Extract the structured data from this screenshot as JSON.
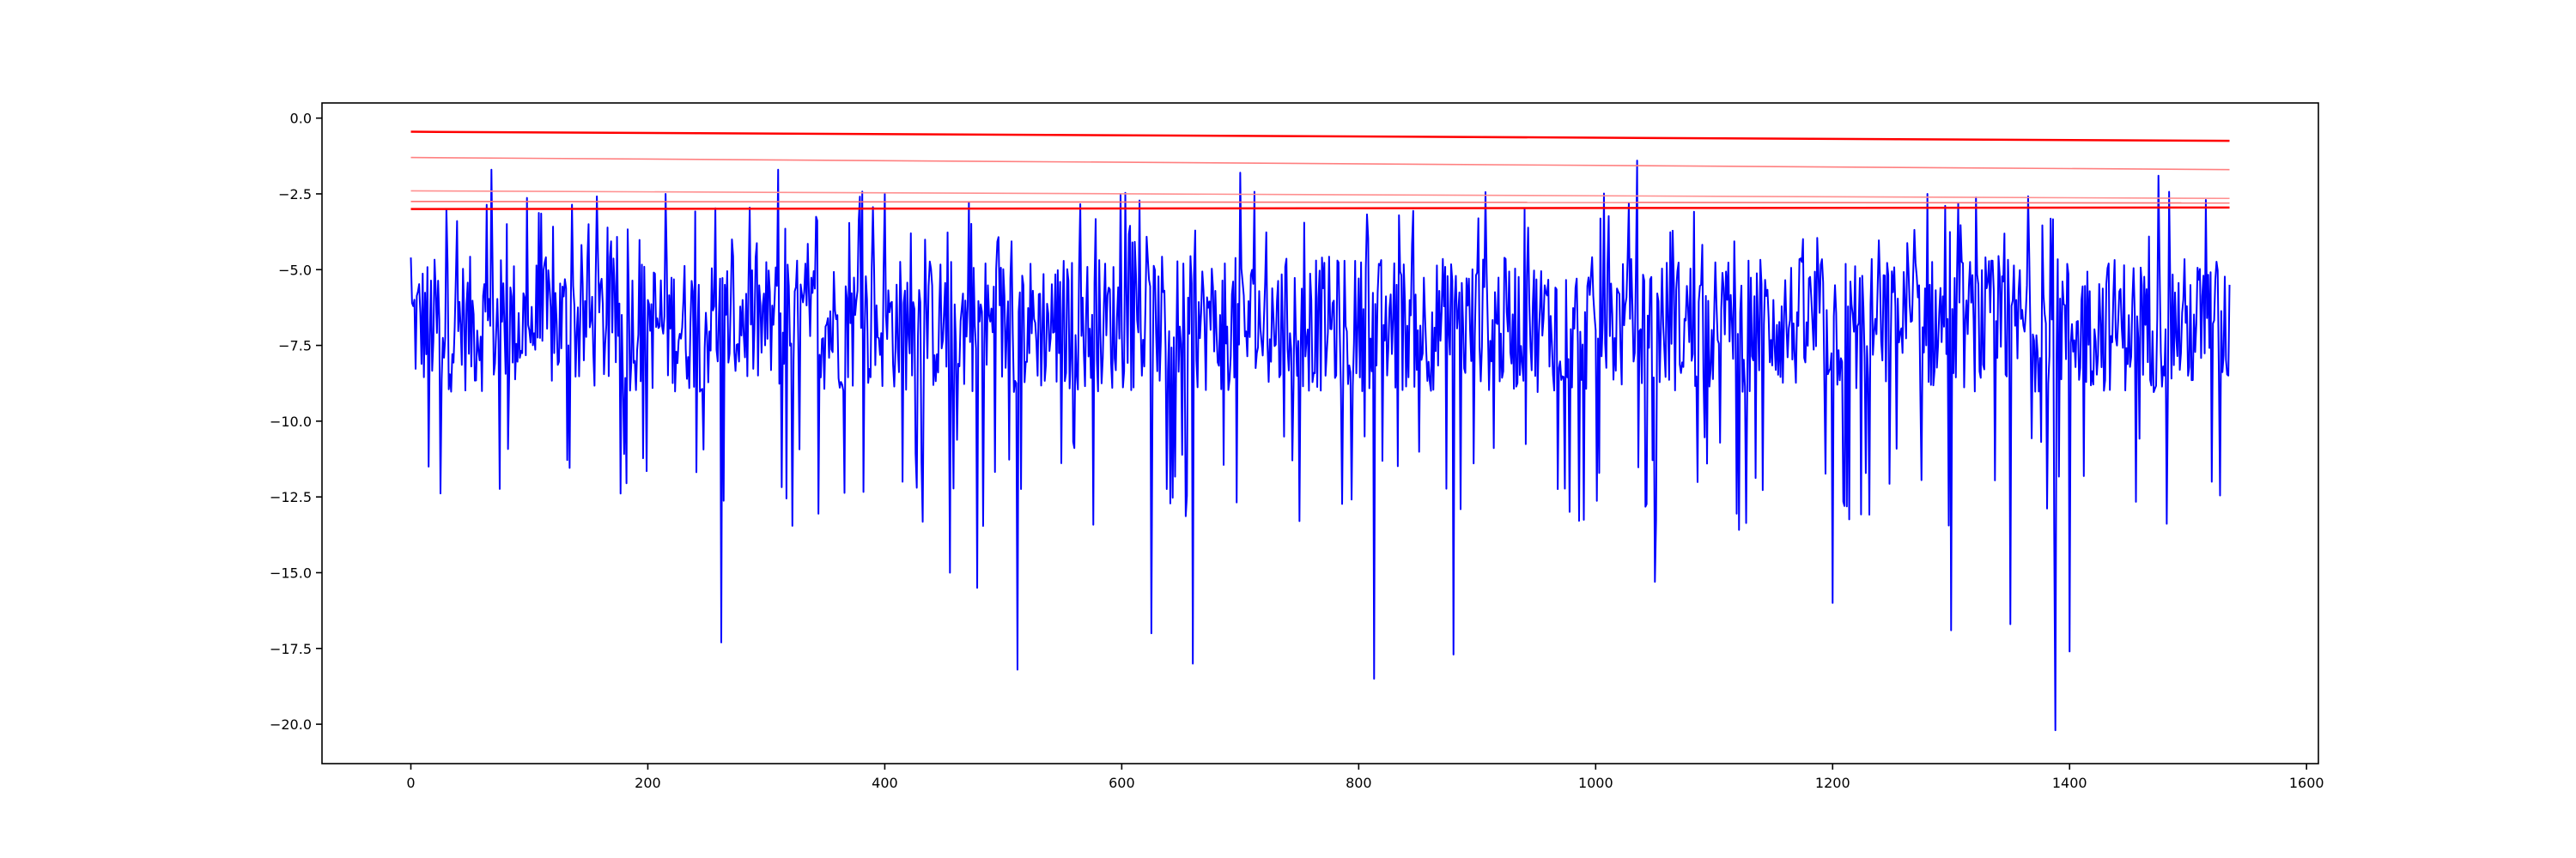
{
  "chart_data": {
    "type": "line",
    "title": "",
    "xlabel": "",
    "ylabel": "",
    "xlim": [
      -75,
      1610
    ],
    "ylim": [
      -21.3,
      0.5
    ],
    "x_ticks": [
      0,
      200,
      400,
      600,
      800,
      1000,
      1200,
      1400,
      1600
    ],
    "x_tick_labels": [
      "0",
      "200",
      "400",
      "600",
      "800",
      "1000",
      "1200",
      "1400",
      "1600"
    ],
    "y_ticks": [
      0,
      -2.5,
      -5,
      -7.5,
      -10,
      -12.5,
      -15,
      -17.5,
      -20
    ],
    "y_tick_labels": [
      "0.0",
      "−2.5",
      "−5.0",
      "−7.5",
      "−10.0",
      "−12.5",
      "−15.0",
      "−17.5",
      "−20.0"
    ],
    "grid": false,
    "legend": "none",
    "series": [
      {
        "color": "#0000ff",
        "x_start": 0,
        "x_step": 1,
        "length": 1536,
        "minimum": -20.2,
        "maximum": -1.4,
        "sampled_x": [
          0,
          15,
          30,
          45,
          68,
          100,
          150,
          200,
          215,
          262,
          280,
          310,
          360,
          400,
          415,
          455,
          478,
          512,
          550,
          600,
          625,
          660,
          700,
          760,
          813,
          850,
          880,
          940,
          1000,
          1035,
          1050,
          1100,
          1150,
          1200,
          1210,
          1280,
          1300,
          1350,
          1388,
          1400,
          1450,
          1475,
          1500,
          1520,
          1535
        ],
        "sampled_y": [
          -4.6,
          -11.5,
          -3.0,
          -6.5,
          -1.7,
          -7.0,
          -3.5,
          -6.0,
          -2.5,
          -17.3,
          -6.0,
          -1.7,
          -6.5,
          -2.5,
          -12.0,
          -15.0,
          -15.5,
          -18.2,
          -6.5,
          -7.0,
          -17.0,
          -18.0,
          -1.8,
          -6.0,
          -18.5,
          -7.0,
          -17.7,
          -3.0,
          -7.0,
          -1.4,
          -15.3,
          -6.5,
          -6.0,
          -16.0,
          -12.8,
          -2.5,
          -16.9,
          -16.7,
          -20.2,
          -17.6,
          -6.5,
          -1.9,
          -8.5,
          -12.0,
          -5.5
        ]
      },
      {
        "color": "#ff0000",
        "x": [
          0,
          1535
        ],
        "y": [
          -0.45,
          -0.75
        ]
      },
      {
        "color": "#ff8080",
        "x": [
          0,
          1535
        ],
        "y": [
          -1.3,
          -1.7
        ]
      },
      {
        "color": "#ff9090",
        "x": [
          0,
          1535
        ],
        "y": [
          -2.4,
          -2.65
        ]
      },
      {
        "color": "#ff7070",
        "x": [
          0,
          1535
        ],
        "y": [
          -2.75,
          -2.8
        ]
      },
      {
        "color": "#ff0000",
        "x": [
          0,
          1535
        ],
        "y": [
          -3.0,
          -2.95
        ]
      }
    ]
  }
}
